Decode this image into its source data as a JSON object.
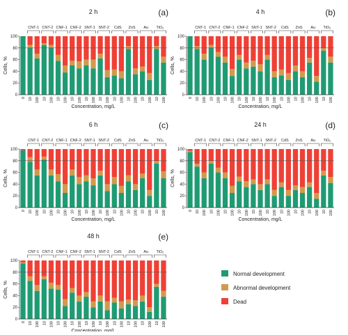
{
  "legend": [
    {
      "label": "Normal development",
      "color": "#1f9b73"
    },
    {
      "label": "Abnormal development",
      "color": "#d19a4c"
    },
    {
      "label": "Dead",
      "color": "#ef4036"
    }
  ],
  "chart_data": [
    {
      "type": "bar",
      "stacked": true,
      "panel_label": "(a)",
      "title": "2 h",
      "xlabel": "Concentration, mg/L",
      "ylabel": "Cells, %",
      "ylim": [
        0,
        100
      ],
      "yticks": [
        0,
        20,
        40,
        60,
        80,
        100
      ],
      "grid": false,
      "reference_line": 80,
      "groups": [
        {
          "label": "",
          "categories": [
            "0"
          ]
        },
        {
          "label": "CNT-1",
          "categories": [
            "10",
            "100"
          ]
        },
        {
          "label": "CNT-2",
          "categories": [
            "10",
            "100"
          ]
        },
        {
          "label": "CNF-1",
          "categories": [
            "10",
            "100"
          ]
        },
        {
          "label": "CNF-2",
          "categories": [
            "10",
            "100"
          ]
        },
        {
          "label": "SNT-1",
          "categories": [
            "10",
            "100"
          ]
        },
        {
          "label": "SNT-2",
          "categories": [
            "10",
            "100"
          ]
        },
        {
          "label": "CdS",
          "categories": [
            "10",
            "100"
          ]
        },
        {
          "label": "ZnS",
          "categories": [
            "10",
            "100"
          ]
        },
        {
          "label": "Au",
          "categories": [
            "10",
            "100"
          ]
        },
        {
          "label": "TiO₂",
          "categories": [
            "10",
            "100"
          ]
        }
      ],
      "series": [
        {
          "name": "Normal development",
          "values": [
            100,
            80,
            62,
            85,
            80,
            58,
            38,
            50,
            45,
            50,
            45,
            62,
            30,
            33,
            28,
            78,
            35,
            40,
            25,
            78,
            55
          ]
        },
        {
          "name": "Abnormal development",
          "values": [
            0,
            5,
            8,
            3,
            5,
            10,
            12,
            8,
            12,
            10,
            15,
            8,
            12,
            10,
            12,
            5,
            10,
            8,
            12,
            5,
            10
          ]
        },
        {
          "name": "Dead",
          "values": [
            0,
            15,
            30,
            12,
            15,
            32,
            50,
            42,
            43,
            40,
            40,
            30,
            58,
            57,
            60,
            17,
            55,
            52,
            63,
            17,
            35
          ]
        }
      ]
    },
    {
      "type": "bar",
      "stacked": true,
      "panel_label": "(b)",
      "title": "4 h",
      "xlabel": "Concentration, mg/L",
      "ylabel": "Cells, %",
      "ylim": [
        0,
        100
      ],
      "yticks": [
        0,
        20,
        40,
        60,
        80,
        100
      ],
      "grid": false,
      "reference_line": 80,
      "groups": [
        {
          "label": "",
          "categories": [
            "0"
          ]
        },
        {
          "label": "CNT-1",
          "categories": [
            "10",
            "100"
          ]
        },
        {
          "label": "CNT-2",
          "categories": [
            "10",
            "100"
          ]
        },
        {
          "label": "CNF-1",
          "categories": [
            "10",
            "100"
          ]
        },
        {
          "label": "CNF-2",
          "categories": [
            "10",
            "100"
          ]
        },
        {
          "label": "SNT-1",
          "categories": [
            "10",
            "100"
          ]
        },
        {
          "label": "SNT-2",
          "categories": [
            "10",
            "100"
          ]
        },
        {
          "label": "CdS",
          "categories": [
            "10",
            "100"
          ]
        },
        {
          "label": "ZnS",
          "categories": [
            "10",
            "100"
          ]
        },
        {
          "label": "Au",
          "categories": [
            "10",
            "100"
          ]
        },
        {
          "label": "TiO₂",
          "categories": [
            "10",
            "100"
          ]
        }
      ],
      "series": [
        {
          "name": "Normal development",
          "values": [
            100,
            78,
            60,
            80,
            65,
            55,
            32,
            60,
            45,
            48,
            40,
            60,
            30,
            33,
            25,
            40,
            30,
            55,
            22,
            75,
            55
          ]
        },
        {
          "name": "Abnormal development",
          "values": [
            0,
            5,
            10,
            5,
            8,
            10,
            12,
            8,
            10,
            10,
            12,
            8,
            10,
            10,
            12,
            10,
            10,
            8,
            10,
            5,
            10
          ]
        },
        {
          "name": "Dead",
          "values": [
            0,
            17,
            30,
            15,
            27,
            35,
            56,
            32,
            45,
            42,
            48,
            32,
            60,
            57,
            63,
            50,
            60,
            37,
            68,
            20,
            35
          ]
        }
      ]
    },
    {
      "type": "bar",
      "stacked": true,
      "panel_label": "(c)",
      "title": "6 h",
      "xlabel": "Concentration, mg/L",
      "ylabel": "Cells, %",
      "ylim": [
        0,
        100
      ],
      "yticks": [
        0,
        20,
        40,
        60,
        80,
        100
      ],
      "grid": false,
      "reference_line": 80,
      "groups": [
        {
          "label": "",
          "categories": [
            "0"
          ]
        },
        {
          "label": "CNT-1",
          "categories": [
            "10",
            "100"
          ]
        },
        {
          "label": "CNT-2",
          "categories": [
            "10",
            "100"
          ]
        },
        {
          "label": "CNF-1",
          "categories": [
            "10",
            "100"
          ]
        },
        {
          "label": "CNF-2",
          "categories": [
            "10",
            "100"
          ]
        },
        {
          "label": "SNT-1",
          "categories": [
            "10",
            "100"
          ]
        },
        {
          "label": "SNT-2",
          "categories": [
            "10",
            "100"
          ]
        },
        {
          "label": "CdS",
          "categories": [
            "10",
            "100"
          ]
        },
        {
          "label": "ZnS",
          "categories": [
            "10",
            "100"
          ]
        },
        {
          "label": "Au",
          "categories": [
            "10",
            "100"
          ]
        },
        {
          "label": "TiO₂",
          "categories": [
            "10",
            "100"
          ]
        }
      ],
      "series": [
        {
          "name": "Normal development",
          "values": [
            98,
            78,
            55,
            82,
            55,
            45,
            25,
            55,
            40,
            45,
            38,
            55,
            28,
            40,
            25,
            45,
            30,
            50,
            20,
            75,
            50
          ]
        },
        {
          "name": "Abnormal development",
          "values": [
            0,
            8,
            10,
            5,
            10,
            12,
            15,
            10,
            12,
            10,
            12,
            8,
            12,
            12,
            12,
            10,
            10,
            8,
            10,
            5,
            12
          ]
        },
        {
          "name": "Dead",
          "values": [
            2,
            14,
            35,
            13,
            35,
            43,
            60,
            35,
            48,
            45,
            50,
            37,
            60,
            48,
            63,
            45,
            60,
            42,
            70,
            20,
            38
          ]
        }
      ]
    },
    {
      "type": "bar",
      "stacked": true,
      "panel_label": "(d)",
      "title": "24 h",
      "xlabel": "Concentration, mg/L",
      "ylabel": "Cells, %",
      "ylim": [
        0,
        100
      ],
      "yticks": [
        0,
        20,
        40,
        60,
        80,
        100
      ],
      "grid": false,
      "reference_line": 80,
      "groups": [
        {
          "label": "",
          "categories": [
            "0"
          ]
        },
        {
          "label": "CNT-1",
          "categories": [
            "10",
            "100"
          ]
        },
        {
          "label": "CNT-2",
          "categories": [
            "10",
            "100"
          ]
        },
        {
          "label": "CNF-1",
          "categories": [
            "10",
            "100"
          ]
        },
        {
          "label": "CNF-2",
          "categories": [
            "10",
            "100"
          ]
        },
        {
          "label": "SNT-1",
          "categories": [
            "10",
            "100"
          ]
        },
        {
          "label": "SNT-2",
          "categories": [
            "10",
            "100"
          ]
        },
        {
          "label": "CdS",
          "categories": [
            "10",
            "100"
          ]
        },
        {
          "label": "ZnS",
          "categories": [
            "10",
            "100"
          ]
        },
        {
          "label": "Au",
          "categories": [
            "10",
            "100"
          ]
        },
        {
          "label": "TiO₂",
          "categories": [
            "10",
            "100"
          ]
        }
      ],
      "series": [
        {
          "name": "Normal development",
          "values": [
            95,
            70,
            50,
            75,
            60,
            50,
            25,
            45,
            35,
            40,
            30,
            40,
            20,
            35,
            20,
            30,
            25,
            35,
            15,
            55,
            42
          ]
        },
        {
          "name": "Abnormal development",
          "values": [
            2,
            5,
            10,
            5,
            8,
            10,
            12,
            8,
            10,
            8,
            10,
            8,
            10,
            8,
            10,
            8,
            10,
            8,
            10,
            8,
            10
          ]
        },
        {
          "name": "Dead",
          "values": [
            3,
            25,
            40,
            20,
            32,
            40,
            63,
            47,
            55,
            52,
            60,
            52,
            70,
            57,
            70,
            62,
            65,
            57,
            75,
            37,
            48
          ]
        }
      ]
    },
    {
      "type": "bar",
      "stacked": true,
      "panel_label": "(e)",
      "title": "48 h",
      "xlabel": "Concentration, mg/L",
      "ylabel": "Cells, %",
      "ylim": [
        0,
        100
      ],
      "yticks": [
        0,
        20,
        40,
        60,
        80,
        100
      ],
      "grid": false,
      "reference_line": 80,
      "groups": [
        {
          "label": "",
          "categories": [
            "0"
          ]
        },
        {
          "label": "CNT-1",
          "categories": [
            "10",
            "100"
          ]
        },
        {
          "label": "CNT-2",
          "categories": [
            "10",
            "100"
          ]
        },
        {
          "label": "CNF-1",
          "categories": [
            "10",
            "100"
          ]
        },
        {
          "label": "CNF-2",
          "categories": [
            "10",
            "100"
          ]
        },
        {
          "label": "SNT-1",
          "categories": [
            "10",
            "100"
          ]
        },
        {
          "label": "SNT-2",
          "categories": [
            "10",
            "100"
          ]
        },
        {
          "label": "CdS",
          "categories": [
            "10",
            "100"
          ]
        },
        {
          "label": "ZnS",
          "categories": [
            "10",
            "100"
          ]
        },
        {
          "label": "Au",
          "categories": [
            "10",
            "100"
          ]
        },
        {
          "label": "TiO₂",
          "categories": [
            "10",
            "100"
          ]
        }
      ],
      "series": [
        {
          "name": "Normal development",
          "values": [
            95,
            65,
            48,
            68,
            52,
            50,
            22,
            45,
            30,
            38,
            20,
            30,
            15,
            28,
            18,
            25,
            22,
            30,
            12,
            55,
            38
          ]
        },
        {
          "name": "Abnormal development",
          "values": [
            2,
            8,
            10,
            5,
            10,
            8,
            12,
            8,
            10,
            8,
            10,
            10,
            15,
            8,
            12,
            8,
            10,
            10,
            8,
            5,
            10
          ]
        },
        {
          "name": "Dead",
          "values": [
            3,
            27,
            42,
            27,
            38,
            42,
            66,
            47,
            60,
            54,
            70,
            60,
            70,
            64,
            70,
            67,
            68,
            60,
            80,
            40,
            52
          ]
        }
      ]
    }
  ]
}
